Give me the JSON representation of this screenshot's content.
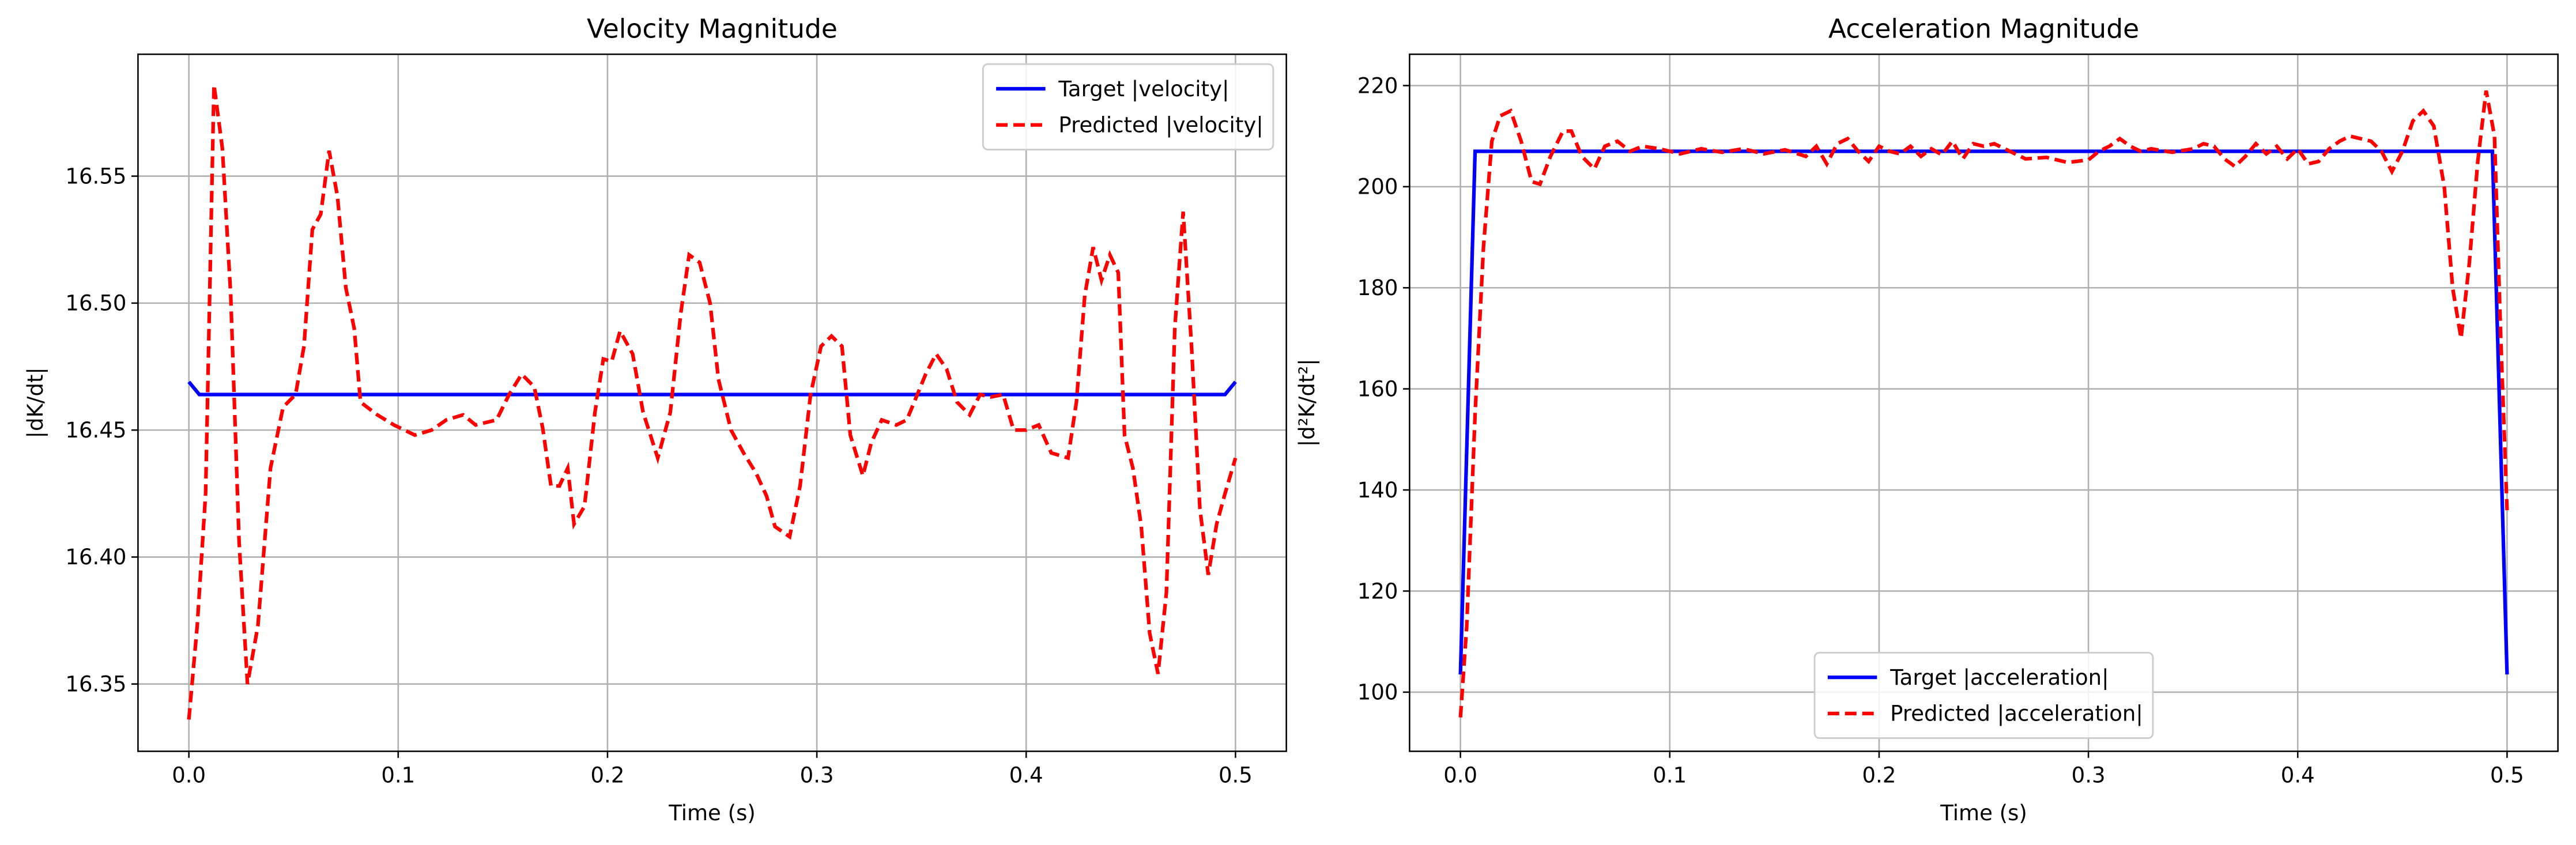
{
  "chart_data": [
    {
      "type": "line",
      "title": "Velocity Magnitude",
      "x_label": "Time (s)",
      "y_label": "|dK/dt|",
      "xlim": [
        -0.0243,
        0.5243
      ],
      "ylim": [
        16.3235,
        16.598
      ],
      "xticks": [
        {
          "value": 0,
          "label": "0.0"
        },
        0.1,
        0.2,
        0.3,
        0.4,
        0.5
      ],
      "yticks": [
        16.35,
        {
          "value": 16.4,
          "label": "16.40"
        },
        16.45,
        {
          "value": 16.5,
          "label": "16.50"
        },
        16.55
      ],
      "grid": true,
      "legend": "upper right",
      "series": [
        {
          "name": "Target |velocity|",
          "color": "#0000ff",
          "linestyle": "solid",
          "x": [
            0,
            0.005,
            0.495,
            0.5
          ],
          "values": [
            16.469,
            16.464,
            16.464,
            16.469
          ]
        },
        {
          "name": "Predicted |velocity|",
          "color": "#ff0000",
          "linestyle": "dashed",
          "x": [
            0,
            0.004,
            0.008,
            0.012,
            0.016,
            0.02,
            0.024,
            0.028,
            0.033,
            0.039,
            0.045,
            0.051,
            0.055,
            0.059,
            0.063,
            0.067,
            0.071,
            0.075,
            0.079,
            0.082,
            0.09,
            0.098,
            0.108,
            0.116,
            0.123,
            0.131,
            0.137,
            0.147,
            0.153,
            0.159,
            0.165,
            0.169,
            0.173,
            0.177,
            0.181,
            0.184,
            0.189,
            0.194,
            0.198,
            0.202,
            0.206,
            0.212,
            0.217,
            0.224,
            0.23,
            0.235,
            0.239,
            0.244,
            0.249,
            0.253,
            0.259,
            0.265,
            0.271,
            0.276,
            0.28,
            0.287,
            0.292,
            0.297,
            0.302,
            0.307,
            0.312,
            0.316,
            0.322,
            0.326,
            0.331,
            0.338,
            0.343,
            0.348,
            0.352,
            0.357,
            0.362,
            0.367,
            0.373,
            0.378,
            0.383,
            0.389,
            0.394,
            0.4,
            0.406,
            0.412,
            0.42,
            0.424,
            0.428,
            0.432,
            0.436,
            0.44,
            0.444,
            0.447,
            0.451,
            0.455,
            0.459,
            0.463,
            0.467,
            0.471,
            0.475,
            0.479,
            0.483,
            0.487,
            0.491,
            0.495,
            0.5
          ],
          "values": [
            16.336,
            16.373,
            16.425,
            16.586,
            16.561,
            16.503,
            16.406,
            16.35,
            16.373,
            16.435,
            16.459,
            16.464,
            16.483,
            16.529,
            16.535,
            16.56,
            16.542,
            16.506,
            16.49,
            16.461,
            16.456,
            16.452,
            16.448,
            16.45,
            16.454,
            16.456,
            16.452,
            16.454,
            16.464,
            16.472,
            16.467,
            16.451,
            16.428,
            16.428,
            16.435,
            16.413,
            16.42,
            16.457,
            16.478,
            16.477,
            16.489,
            16.48,
            16.457,
            16.439,
            16.457,
            16.496,
            16.519,
            16.516,
            16.5,
            16.47,
            16.45,
            16.441,
            16.433,
            16.424,
            16.412,
            16.408,
            16.428,
            16.464,
            16.483,
            16.487,
            16.483,
            16.448,
            16.432,
            16.445,
            16.454,
            16.452,
            16.454,
            16.464,
            16.472,
            16.48,
            16.474,
            16.461,
            16.456,
            16.464,
            16.463,
            16.464,
            16.45,
            16.45,
            16.452,
            16.441,
            16.439,
            16.461,
            16.503,
            16.522,
            16.509,
            16.519,
            16.512,
            16.448,
            16.435,
            16.412,
            16.37,
            16.354,
            16.386,
            16.49,
            16.536,
            16.483,
            16.419,
            16.393,
            16.413,
            16.425,
            16.439
          ]
        }
      ]
    },
    {
      "type": "line",
      "title": "Acceleration Magnitude",
      "x_label": "Time (s)",
      "y_label": "|d²K/dt²|",
      "xlim": [
        -0.0243,
        0.5243
      ],
      "ylim": [
        88.3,
        226.2
      ],
      "xticks": [
        {
          "value": 0,
          "label": "0.0"
        },
        0.1,
        0.2,
        0.3,
        0.4,
        0.5
      ],
      "yticks": [
        100,
        120,
        140,
        160,
        180,
        200,
        220
      ],
      "grid": true,
      "legend": "lower center",
      "series": [
        {
          "name": "Target |acceleration|",
          "color": "#0000ff",
          "linestyle": "solid",
          "x": [
            0,
            0.007,
            0.493,
            0.5
          ],
          "values": [
            103.5,
            207,
            207,
            103.5
          ]
        },
        {
          "name": "Predicted |acceleration|",
          "color": "#ff0000",
          "linestyle": "dashed",
          "x": [
            0,
            0.003,
            0.007,
            0.011,
            0.015,
            0.019,
            0.024,
            0.029,
            0.034,
            0.038,
            0.043,
            0.049,
            0.053,
            0.058,
            0.064,
            0.069,
            0.075,
            0.081,
            0.087,
            0.095,
            0.105,
            0.115,
            0.125,
            0.135,
            0.145,
            0.155,
            0.165,
            0.17,
            0.175,
            0.18,
            0.185,
            0.19,
            0.195,
            0.2,
            0.205,
            0.21,
            0.215,
            0.22,
            0.225,
            0.23,
            0.235,
            0.24,
            0.245,
            0.25,
            0.255,
            0.26,
            0.265,
            0.27,
            0.28,
            0.29,
            0.3,
            0.305,
            0.31,
            0.315,
            0.32,
            0.325,
            0.33,
            0.34,
            0.35,
            0.355,
            0.36,
            0.365,
            0.37,
            0.375,
            0.38,
            0.385,
            0.39,
            0.395,
            0.4,
            0.405,
            0.41,
            0.415,
            0.42,
            0.425,
            0.43,
            0.435,
            0.44,
            0.445,
            0.45,
            0.455,
            0.46,
            0.465,
            0.47,
            0.474,
            0.478,
            0.482,
            0.486,
            0.49,
            0.494,
            0.497,
            0.5
          ],
          "values": [
            95,
            113,
            155,
            188,
            209,
            214,
            215,
            209,
            201,
            200.5,
            206,
            211,
            211,
            206,
            203.5,
            208,
            209,
            207,
            208,
            207.5,
            206.5,
            207.5,
            206.8,
            207.5,
            206.5,
            207.3,
            206,
            208,
            204.5,
            208.5,
            209.5,
            207,
            205,
            208,
            207,
            206.5,
            208,
            206,
            207.5,
            206.3,
            209,
            205.5,
            208.5,
            208,
            208.5,
            207.5,
            206.5,
            205.5,
            205.8,
            204.8,
            205.3,
            207,
            208,
            209.5,
            208,
            207,
            207.5,
            206.8,
            207.5,
            208.5,
            208,
            205.5,
            204,
            206,
            208.5,
            206.5,
            208,
            205.5,
            207.5,
            204.5,
            205,
            207.5,
            209,
            210,
            209.5,
            209,
            207,
            203,
            207,
            213,
            215,
            212,
            200,
            180,
            170,
            185,
            205,
            219,
            210,
            170,
            136
          ]
        }
      ]
    }
  ]
}
